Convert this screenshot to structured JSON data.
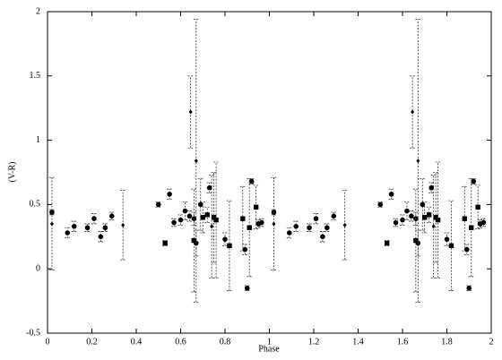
{
  "chart_data": {
    "type": "scatter",
    "x_label": "Phase",
    "y_label": "(V-R)",
    "xlim": [
      0,
      2
    ],
    "xticks": [
      0,
      0.2,
      0.4,
      0.6,
      0.8,
      1,
      1.2,
      1.4,
      1.6,
      1.8,
      2
    ],
    "ylim": [
      -0.5,
      2
    ],
    "yticks": [
      -0.5,
      0,
      0.5,
      1,
      1.5,
      2
    ],
    "series": [
      {
        "marker": "circle",
        "color": "#000000",
        "x": [
          0.02,
          0.09,
          0.12,
          0.18,
          0.21,
          0.24,
          0.26,
          0.29,
          0.5,
          0.55,
          0.57,
          0.6,
          0.62,
          0.64,
          0.66,
          0.67,
          0.69,
          0.73,
          0.8,
          0.89,
          0.9,
          0.92,
          0.95,
          0.965,
          1.02,
          1.09,
          1.12,
          1.18,
          1.21,
          1.24,
          1.26,
          1.29,
          1.5,
          1.55,
          1.57,
          1.6,
          1.62,
          1.64,
          1.66,
          1.67,
          1.69,
          1.73,
          1.8,
          1.89,
          1.9,
          1.92,
          1.95,
          1.965
        ],
        "values": [
          0.44,
          0.28,
          0.33,
          0.32,
          0.39,
          0.25,
          0.32,
          0.41,
          0.5,
          0.58,
          0.36,
          0.38,
          0.45,
          0.41,
          0.39,
          0.2,
          0.5,
          0.63,
          0.23,
          0.15,
          -0.15,
          0.68,
          0.35,
          0.36,
          0.44,
          0.28,
          0.33,
          0.32,
          0.39,
          0.25,
          0.32,
          0.41,
          0.5,
          0.58,
          0.36,
          0.38,
          0.45,
          0.41,
          0.39,
          0.2,
          0.5,
          0.63,
          0.23,
          0.15,
          -0.15,
          0.68,
          0.35,
          0.36
        ],
        "errors": [
          0.02,
          0.04,
          0.04,
          0.03,
          0.04,
          0.04,
          0.03,
          0.03,
          0.02,
          0.04,
          0.03,
          0.04,
          0.07,
          0.04,
          0.05,
          0.1,
          0.2,
          0.04,
          0.05,
          0.04,
          0.02,
          0.02,
          0.03,
          0.03,
          0.02,
          0.04,
          0.04,
          0.03,
          0.04,
          0.04,
          0.03,
          0.03,
          0.02,
          0.04,
          0.03,
          0.04,
          0.07,
          0.04,
          0.05,
          0.1,
          0.2,
          0.04,
          0.05,
          0.04,
          0.02,
          0.02,
          0.03,
          0.03
        ]
      },
      {
        "marker": "square",
        "color": "#000000",
        "x": [
          0.53,
          0.66,
          0.7,
          0.72,
          0.75,
          0.76,
          0.82,
          0.88,
          0.91,
          0.94,
          1.53,
          1.66,
          1.7,
          1.72,
          1.75,
          1.76,
          1.82,
          1.88,
          1.91,
          1.94
        ],
        "values": [
          0.2,
          0.22,
          0.4,
          0.42,
          0.4,
          0.38,
          0.18,
          0.39,
          0.32,
          0.48,
          0.2,
          0.22,
          0.4,
          0.42,
          0.4,
          0.38,
          0.18,
          0.39,
          0.32,
          0.48
        ],
        "errors": [
          0.02,
          0.4,
          0.12,
          0.06,
          0.35,
          0.45,
          0.35,
          0.25,
          0.38,
          0.17,
          0.02,
          0.4,
          0.12,
          0.06,
          0.35,
          0.45,
          0.35,
          0.25,
          0.38,
          0.17
        ]
      },
      {
        "marker": "diamond",
        "color": "#000000",
        "x": [
          0.02,
          0.34,
          0.645,
          0.67,
          0.74,
          1.02,
          1.34,
          1.645,
          1.67,
          1.74
        ],
        "values": [
          0.35,
          0.34,
          1.22,
          0.84,
          0.33,
          0.35,
          0.34,
          1.22,
          0.84,
          0.33
        ],
        "errors": [
          0.36,
          0.27,
          0.28,
          1.1,
          0.4,
          0.36,
          0.27,
          0.28,
          1.1,
          0.4
        ]
      }
    ]
  }
}
